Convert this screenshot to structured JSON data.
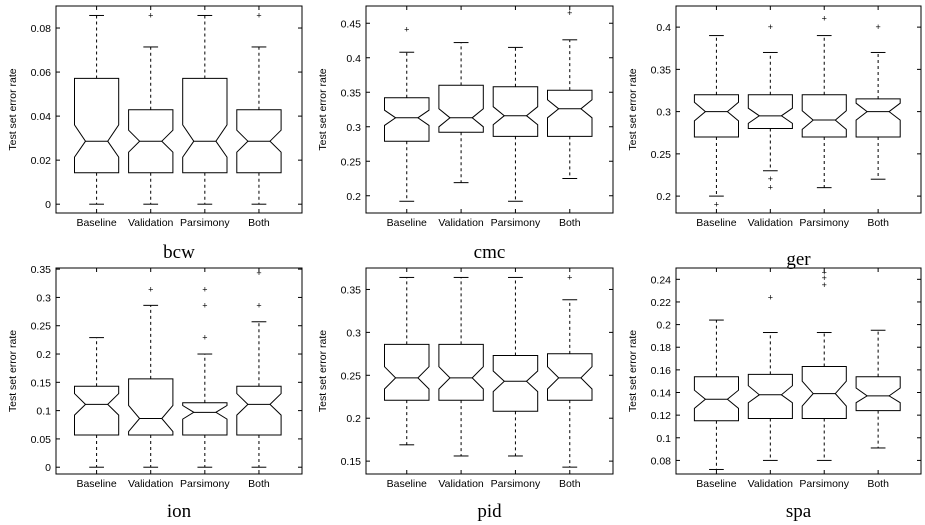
{
  "chart_data": [
    {
      "type": "box",
      "title": "bcw",
      "ylabel": "Test set error rate",
      "categories": [
        "Baseline",
        "Validation",
        "Parsimony",
        "Both"
      ],
      "ylim": [
        -0.004,
        0.09
      ],
      "yticks": [
        0,
        0.02,
        0.04,
        0.06,
        0.08
      ],
      "ytick_labels": [
        "0",
        "0.02",
        "0.04",
        "0.06",
        "0.08"
      ],
      "boxes": [
        {
          "min": 0,
          "q1": 0.0143,
          "median": 0.0286,
          "q3": 0.0571,
          "max": 0.0857,
          "notch_low": 0.0214,
          "notch_high": 0.036,
          "outliers": []
        },
        {
          "min": 0,
          "q1": 0.0143,
          "median": 0.0286,
          "q3": 0.0429,
          "max": 0.0714,
          "notch_low": 0.0236,
          "notch_high": 0.0336,
          "outliers": [
            0.0857
          ]
        },
        {
          "min": 0,
          "q1": 0.0143,
          "median": 0.0286,
          "q3": 0.0571,
          "max": 0.0857,
          "notch_low": 0.0214,
          "notch_high": 0.036,
          "outliers": []
        },
        {
          "min": 0,
          "q1": 0.0143,
          "median": 0.0286,
          "q3": 0.0429,
          "max": 0.0714,
          "notch_low": 0.0236,
          "notch_high": 0.0336,
          "outliers": [
            0.0857
          ]
        }
      ]
    },
    {
      "type": "box",
      "title": "cmc",
      "ylabel": "Test set error rate",
      "categories": [
        "Baseline",
        "Validation",
        "Parsimony",
        "Both"
      ],
      "ylim": [
        0.175,
        0.475
      ],
      "yticks": [
        0.2,
        0.25,
        0.3,
        0.35,
        0.4,
        0.45
      ],
      "ytick_labels": [
        "0.2",
        "0.25",
        "0.3",
        "0.35",
        "0.4",
        "0.45"
      ],
      "boxes": [
        {
          "min": 0.192,
          "q1": 0.279,
          "median": 0.313,
          "q3": 0.342,
          "max": 0.408,
          "notch_low": 0.302,
          "notch_high": 0.324,
          "outliers": [
            0.441
          ]
        },
        {
          "min": 0.219,
          "q1": 0.292,
          "median": 0.313,
          "q3": 0.36,
          "max": 0.422,
          "notch_low": 0.3,
          "notch_high": 0.326,
          "outliers": []
        },
        {
          "min": 0.192,
          "q1": 0.286,
          "median": 0.316,
          "q3": 0.358,
          "max": 0.415,
          "notch_low": 0.303,
          "notch_high": 0.329,
          "outliers": []
        },
        {
          "min": 0.225,
          "q1": 0.286,
          "median": 0.326,
          "q3": 0.353,
          "max": 0.426,
          "notch_low": 0.313,
          "notch_high": 0.339,
          "outliers": [
            0.465
          ]
        }
      ]
    },
    {
      "type": "box",
      "title": "ger",
      "ylabel": "Test set error rate",
      "categories": [
        "Baseline",
        "Validation",
        "Parsimony",
        "Both"
      ],
      "ylim": [
        0.18,
        0.425
      ],
      "yticks": [
        0.2,
        0.25,
        0.3,
        0.35,
        0.4
      ],
      "ytick_labels": [
        "0.2",
        "0.25",
        "0.3",
        "0.35",
        "0.4"
      ],
      "boxes": [
        {
          "min": 0.2,
          "q1": 0.27,
          "median": 0.3,
          "q3": 0.32,
          "max": 0.39,
          "notch_low": 0.289,
          "notch_high": 0.311,
          "outliers": [
            0.19
          ]
        },
        {
          "min": 0.23,
          "q1": 0.28,
          "median": 0.295,
          "q3": 0.32,
          "max": 0.37,
          "notch_low": 0.286,
          "notch_high": 0.304,
          "outliers": [
            0.22,
            0.21,
            0.4
          ]
        },
        {
          "min": 0.21,
          "q1": 0.27,
          "median": 0.29,
          "q3": 0.32,
          "max": 0.39,
          "notch_low": 0.279,
          "notch_high": 0.301,
          "outliers": [
            0.41
          ]
        },
        {
          "min": 0.22,
          "q1": 0.27,
          "median": 0.3,
          "q3": 0.315,
          "max": 0.37,
          "notch_low": 0.29,
          "notch_high": 0.31,
          "outliers": [
            0.4
          ]
        }
      ]
    },
    {
      "type": "box",
      "title": "ion",
      "ylabel": "Test set error rate",
      "categories": [
        "Baseline",
        "Validation",
        "Parsimony",
        "Both"
      ],
      "ylim": [
        -0.012,
        0.352
      ],
      "yticks": [
        0,
        0.05,
        0.1,
        0.15,
        0.2,
        0.25,
        0.3,
        0.35
      ],
      "ytick_labels": [
        "0",
        "0.05",
        "0.1",
        "0.15",
        "0.2",
        "0.25",
        "0.3",
        "0.35"
      ],
      "boxes": [
        {
          "min": 0,
          "q1": 0.057,
          "median": 0.111,
          "q3": 0.143,
          "max": 0.229,
          "notch_low": 0.092,
          "notch_high": 0.13,
          "outliers": []
        },
        {
          "min": 0,
          "q1": 0.057,
          "median": 0.086,
          "q3": 0.156,
          "max": 0.286,
          "notch_low": 0.063,
          "notch_high": 0.109,
          "outliers": [
            0.314
          ]
        },
        {
          "min": 0,
          "q1": 0.057,
          "median": 0.097,
          "q3": 0.114,
          "max": 0.2,
          "notch_low": 0.085,
          "notch_high": 0.109,
          "outliers": [
            0.229,
            0.286,
            0.314
          ]
        },
        {
          "min": 0,
          "q1": 0.057,
          "median": 0.111,
          "q3": 0.143,
          "max": 0.257,
          "notch_low": 0.092,
          "notch_high": 0.13,
          "outliers": [
            0.286,
            0.343
          ]
        }
      ]
    },
    {
      "type": "box",
      "title": "pid",
      "ylabel": "Test set error rate",
      "categories": [
        "Baseline",
        "Validation",
        "Parsimony",
        "Both"
      ],
      "ylim": [
        0.135,
        0.375
      ],
      "yticks": [
        0.15,
        0.2,
        0.25,
        0.3,
        0.35
      ],
      "ytick_labels": [
        "0.15",
        "0.2",
        "0.25",
        "0.3",
        "0.35"
      ],
      "boxes": [
        {
          "min": 0.169,
          "q1": 0.221,
          "median": 0.247,
          "q3": 0.286,
          "max": 0.364,
          "notch_low": 0.234,
          "notch_high": 0.26,
          "outliers": []
        },
        {
          "min": 0.156,
          "q1": 0.221,
          "median": 0.247,
          "q3": 0.286,
          "max": 0.364,
          "notch_low": 0.234,
          "notch_high": 0.26,
          "outliers": []
        },
        {
          "min": 0.156,
          "q1": 0.208,
          "median": 0.243,
          "q3": 0.273,
          "max": 0.364,
          "notch_low": 0.231,
          "notch_high": 0.255,
          "outliers": []
        },
        {
          "min": 0.143,
          "q1": 0.221,
          "median": 0.247,
          "q3": 0.275,
          "max": 0.338,
          "notch_low": 0.234,
          "notch_high": 0.26,
          "outliers": [
            0.364
          ]
        }
      ]
    },
    {
      "type": "box",
      "title": "spa",
      "ylabel": "Test set error rate",
      "categories": [
        "Baseline",
        "Validation",
        "Parsimony",
        "Both"
      ],
      "ylim": [
        0.068,
        0.25
      ],
      "yticks": [
        0.08,
        0.1,
        0.12,
        0.14,
        0.16,
        0.18,
        0.2,
        0.22,
        0.24
      ],
      "ytick_labels": [
        "0.08",
        "0.1",
        "0.12",
        "0.14",
        "0.16",
        "0.18",
        "0.2",
        "0.22",
        "0.24"
      ],
      "boxes": [
        {
          "min": 0.072,
          "q1": 0.115,
          "median": 0.134,
          "q3": 0.154,
          "max": 0.204,
          "notch_low": 0.126,
          "notch_high": 0.142,
          "outliers": []
        },
        {
          "min": 0.08,
          "q1": 0.117,
          "median": 0.138,
          "q3": 0.156,
          "max": 0.193,
          "notch_low": 0.131,
          "notch_high": 0.146,
          "outliers": [
            0.224
          ]
        },
        {
          "min": 0.08,
          "q1": 0.117,
          "median": 0.139,
          "q3": 0.163,
          "max": 0.193,
          "notch_low": 0.128,
          "notch_high": 0.15,
          "outliers": [
            0.235,
            0.241,
            0.246
          ]
        },
        {
          "min": 0.091,
          "q1": 0.124,
          "median": 0.137,
          "q3": 0.154,
          "max": 0.195,
          "notch_low": 0.131,
          "notch_high": 0.144,
          "outliers": []
        }
      ]
    }
  ]
}
